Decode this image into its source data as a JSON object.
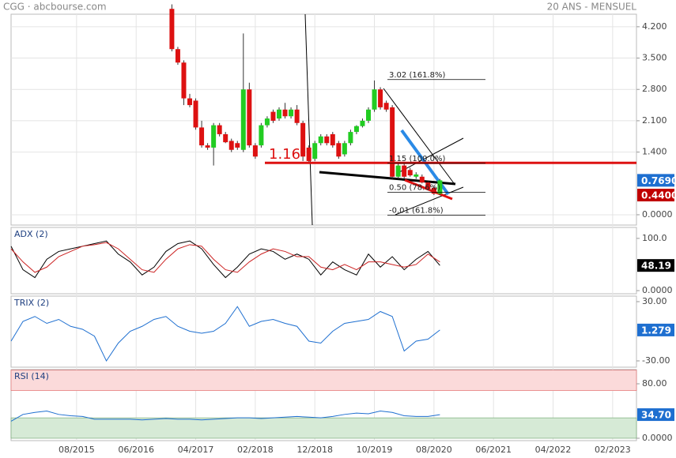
{
  "header": {
    "left": "CGG · abcbourse.com",
    "right": "20 ANS - MENSUEL"
  },
  "chart_data": [
    {
      "type": "candlestick",
      "xlim": [
        "09/2014",
        "06/2023"
      ],
      "xticks": [
        "08/2015",
        "06/2016",
        "04/2017",
        "02/2018",
        "12/2018",
        "10/2019",
        "08/2020",
        "06/2021",
        "04/2022",
        "02/2023"
      ],
      "ylim": [
        -0.23,
        4.48
      ],
      "yticks": [
        {
          "value": 4.2,
          "label": "4.200"
        },
        {
          "value": 3.5,
          "label": "3.500"
        },
        {
          "value": 2.8,
          "label": "2.800"
        },
        {
          "value": 2.1,
          "label": "2.100"
        },
        {
          "value": 1.4,
          "label": "1.400"
        },
        {
          "value": 0,
          "label": "0.0000"
        }
      ],
      "grid": true,
      "up_color": "#22cc22",
      "down_color": "#dd1111",
      "x": [
        "12/2016",
        "01/2017",
        "02/2017",
        "03/2017",
        "04/2017",
        "05/2017",
        "06/2017",
        "07/2017",
        "08/2017",
        "09/2017",
        "10/2017",
        "11/2017",
        "12/2017",
        "01/2018",
        "02/2018",
        "03/2018",
        "04/2018",
        "05/2018",
        "06/2018",
        "07/2018",
        "08/2018",
        "09/2018",
        "10/2018",
        "11/2018",
        "12/2018",
        "01/2019",
        "02/2019",
        "03/2019",
        "04/2019",
        "05/2019",
        "06/2019",
        "07/2019",
        "08/2019",
        "09/2019",
        "10/2019",
        "11/2019",
        "12/2019",
        "01/2020",
        "02/2020",
        "03/2020",
        "04/2020",
        "05/2020",
        "06/2020",
        "07/2020",
        "08/2020",
        "09/2020"
      ],
      "open": [
        4.6,
        3.7,
        3.4,
        2.6,
        2.55,
        1.95,
        1.55,
        1.5,
        2.0,
        1.8,
        1.65,
        1.6,
        1.45,
        2.8,
        1.55,
        1.55,
        2.0,
        2.3,
        2.15,
        2.35,
        2.2,
        2.35,
        2.05,
        1.5,
        1.25,
        1.6,
        1.75,
        1.8,
        1.6,
        1.35,
        1.6,
        1.85,
        1.98,
        2.1,
        2.35,
        2.8,
        2.5,
        2.4,
        0.85,
        1.1,
        1.0,
        0.85,
        0.85,
        0.72,
        0.6,
        0.47
      ],
      "high": [
        4.7,
        3.75,
        3.45,
        2.7,
        2.6,
        2.1,
        1.6,
        2.05,
        2.05,
        1.85,
        1.7,
        1.65,
        4.05,
        2.95,
        1.6,
        2.05,
        2.2,
        2.35,
        2.4,
        2.5,
        2.4,
        2.45,
        2.1,
        1.55,
        1.65,
        1.8,
        1.8,
        1.85,
        1.65,
        1.65,
        1.9,
        2.0,
        2.15,
        2.4,
        3.0,
        2.85,
        2.55,
        2.45,
        1.15,
        1.15,
        1.05,
        0.95,
        0.9,
        0.75,
        0.65,
        0.8
      ],
      "low": [
        3.65,
        3.35,
        2.45,
        2.4,
        1.9,
        1.5,
        1.45,
        1.1,
        1.75,
        1.6,
        1.4,
        1.45,
        1.4,
        1.5,
        1.25,
        1.5,
        1.95,
        2.05,
        2.1,
        2.15,
        2.15,
        2.0,
        1.2,
        1.15,
        1.2,
        1.55,
        1.55,
        1.5,
        1.25,
        1.3,
        1.55,
        1.8,
        1.95,
        2.05,
        2.3,
        2.35,
        2.3,
        0.8,
        0.8,
        0.8,
        0.85,
        0.8,
        0.7,
        0.55,
        0.44,
        0.44
      ],
      "close": [
        3.7,
        3.4,
        2.6,
        2.45,
        1.95,
        1.55,
        1.5,
        2.0,
        1.8,
        1.62,
        1.45,
        1.5,
        2.8,
        1.55,
        1.3,
        2.0,
        2.15,
        2.1,
        2.35,
        2.2,
        2.35,
        2.05,
        1.3,
        1.2,
        1.6,
        1.75,
        1.6,
        1.55,
        1.3,
        1.6,
        1.85,
        1.98,
        2.1,
        2.35,
        2.8,
        2.4,
        2.35,
        0.85,
        1.1,
        0.85,
        0.88,
        0.9,
        0.72,
        0.58,
        0.47,
        0.769
      ],
      "hline": {
        "value": 1.16,
        "label": "1.16",
        "color": "#dd1111"
      },
      "fib_levels": [
        {
          "value": 3.02,
          "label": "3.02  (161.8%)"
        },
        {
          "value": 1.15,
          "label": "1.15  (100.0%)"
        },
        {
          "value": 0.5,
          "label": "0.50  (78.6%)"
        },
        {
          "value": -0.01,
          "label": "-0.01  (61.8%)"
        }
      ],
      "price_tags": [
        {
          "value": 0.769,
          "label": "0.7690",
          "color": "#1e6fd0"
        },
        {
          "value": 0.44,
          "label": "0.4400",
          "color": "#c00000"
        }
      ]
    },
    {
      "type": "line",
      "title": "ADX (2)",
      "ylim": [
        -6,
        121
      ],
      "yticks": [
        {
          "value": 100,
          "label": "100.0"
        },
        {
          "value": 0,
          "label": "0.0000"
        }
      ],
      "x": [
        "09/2014",
        "11/2014",
        "01/2015",
        "03/2015",
        "05/2015",
        "07/2015",
        "09/2015",
        "11/2015",
        "01/2016",
        "03/2016",
        "05/2016",
        "07/2016",
        "09/2016",
        "11/2016",
        "01/2017",
        "03/2017",
        "05/2017",
        "07/2017",
        "09/2017",
        "11/2017",
        "01/2018",
        "03/2018",
        "05/2018",
        "07/2018",
        "09/2018",
        "11/2018",
        "01/2019",
        "03/2019",
        "05/2019",
        "07/2019",
        "09/2019",
        "11/2019",
        "01/2020",
        "03/2020",
        "05/2020",
        "07/2020",
        "09/2020"
      ],
      "series": [
        {
          "color": "#000000",
          "values": [
            85,
            40,
            25,
            60,
            75,
            80,
            85,
            90,
            95,
            70,
            55,
            30,
            45,
            75,
            90,
            95,
            80,
            50,
            25,
            45,
            70,
            80,
            75,
            60,
            70,
            60,
            30,
            55,
            40,
            30,
            70,
            45,
            65,
            40,
            60,
            75,
            48.19
          ]
        },
        {
          "color": "#cc2222",
          "values": [
            80,
            55,
            35,
            45,
            65,
            75,
            85,
            88,
            92,
            80,
            60,
            40,
            35,
            60,
            80,
            88,
            85,
            60,
            40,
            35,
            55,
            70,
            80,
            75,
            65,
            65,
            45,
            40,
            50,
            40,
            55,
            55,
            50,
            45,
            50,
            70,
            55
          ]
        }
      ],
      "price_tags": [
        {
          "value": 48.19,
          "label": "48.19",
          "color": "#000000"
        }
      ]
    },
    {
      "type": "line",
      "title": "TRIX (2)",
      "ylim": [
        -36.4,
        35.6
      ],
      "yticks": [
        {
          "value": 30,
          "label": "30.00"
        },
        {
          "value": -30,
          "label": "-30.00"
        }
      ],
      "x": [
        "09/2014",
        "11/2014",
        "01/2015",
        "03/2015",
        "05/2015",
        "07/2015",
        "09/2015",
        "11/2015",
        "01/2016",
        "03/2016",
        "05/2016",
        "07/2016",
        "09/2016",
        "11/2016",
        "01/2017",
        "03/2017",
        "05/2017",
        "07/2017",
        "09/2017",
        "11/2017",
        "01/2018",
        "03/2018",
        "05/2018",
        "07/2018",
        "09/2018",
        "11/2018",
        "01/2019",
        "03/2019",
        "05/2019",
        "07/2019",
        "09/2019",
        "11/2019",
        "01/2020",
        "03/2020",
        "05/2020",
        "07/2020",
        "09/2020"
      ],
      "series": [
        {
          "color": "#1e6fd0",
          "values": [
            -10,
            10,
            15,
            8,
            12,
            5,
            2,
            -5,
            -30,
            -12,
            0,
            5,
            12,
            15,
            5,
            0,
            -2,
            0,
            8,
            25,
            5,
            10,
            12,
            8,
            5,
            -10,
            -12,
            0,
            8,
            10,
            12,
            20,
            15,
            -20,
            -10,
            -8,
            1.279
          ]
        }
      ],
      "price_tags": [
        {
          "value": 1.279,
          "label": "1.279",
          "color": "#1e6fd0"
        }
      ]
    },
    {
      "type": "line",
      "title": "RSI (14)",
      "ylim": [
        -3.5,
        100.9
      ],
      "yticks": [
        {
          "value": 80,
          "label": "80.00"
        },
        {
          "value": 0,
          "label": "0.0000"
        }
      ],
      "bands": [
        {
          "from": 70,
          "to": 100,
          "color": "#fbdada"
        },
        {
          "from": 0,
          "to": 30,
          "color": "#d6ead6"
        }
      ],
      "x": [
        "09/2014",
        "11/2014",
        "01/2015",
        "03/2015",
        "05/2015",
        "07/2015",
        "09/2015",
        "11/2015",
        "01/2016",
        "03/2016",
        "05/2016",
        "07/2016",
        "09/2016",
        "11/2016",
        "01/2017",
        "03/2017",
        "05/2017",
        "07/2017",
        "09/2017",
        "11/2017",
        "01/2018",
        "03/2018",
        "05/2018",
        "07/2018",
        "09/2018",
        "11/2018",
        "01/2019",
        "03/2019",
        "05/2019",
        "07/2019",
        "09/2019",
        "11/2019",
        "01/2020",
        "03/2020",
        "05/2020",
        "07/2020",
        "09/2020"
      ],
      "series": [
        {
          "color": "#1e6fd0",
          "values": [
            25,
            35,
            38,
            40,
            35,
            33,
            32,
            28,
            28,
            28,
            28,
            27,
            28,
            29,
            28,
            28,
            27,
            28,
            29,
            30,
            30,
            29,
            30,
            31,
            32,
            31,
            30,
            32,
            35,
            37,
            36,
            40,
            38,
            33,
            32,
            32,
            34.7
          ]
        }
      ],
      "price_tags": [
        {
          "value": 34.7,
          "label": "34.70",
          "color": "#1e6fd0"
        }
      ]
    }
  ]
}
